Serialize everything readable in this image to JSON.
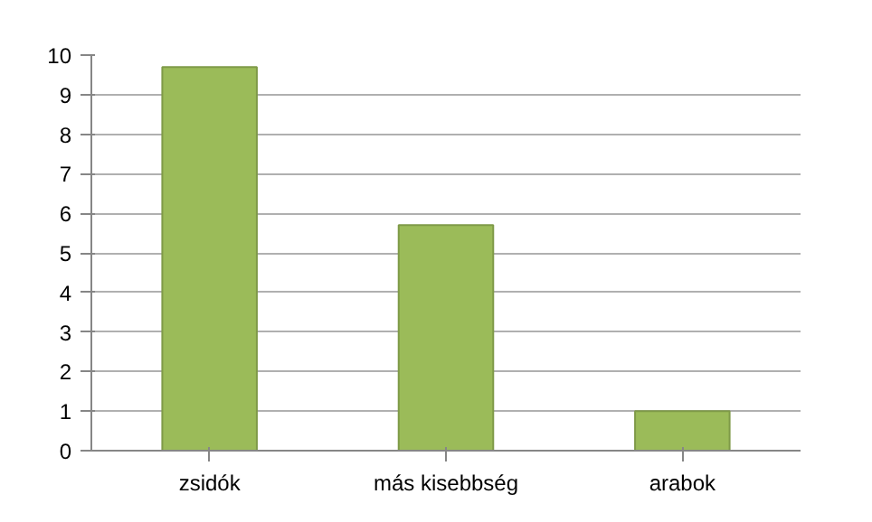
{
  "chart_data": {
    "type": "bar",
    "categories": [
      "zsidók",
      "más kisebbség",
      "arabok"
    ],
    "values": [
      9.7,
      5.7,
      1.0
    ],
    "color": "#9bbb59",
    "ylim": [
      0,
      10
    ],
    "yticks": [
      0,
      1,
      2,
      3,
      4,
      5,
      6,
      7,
      8,
      9,
      10
    ],
    "grid": "y"
  }
}
